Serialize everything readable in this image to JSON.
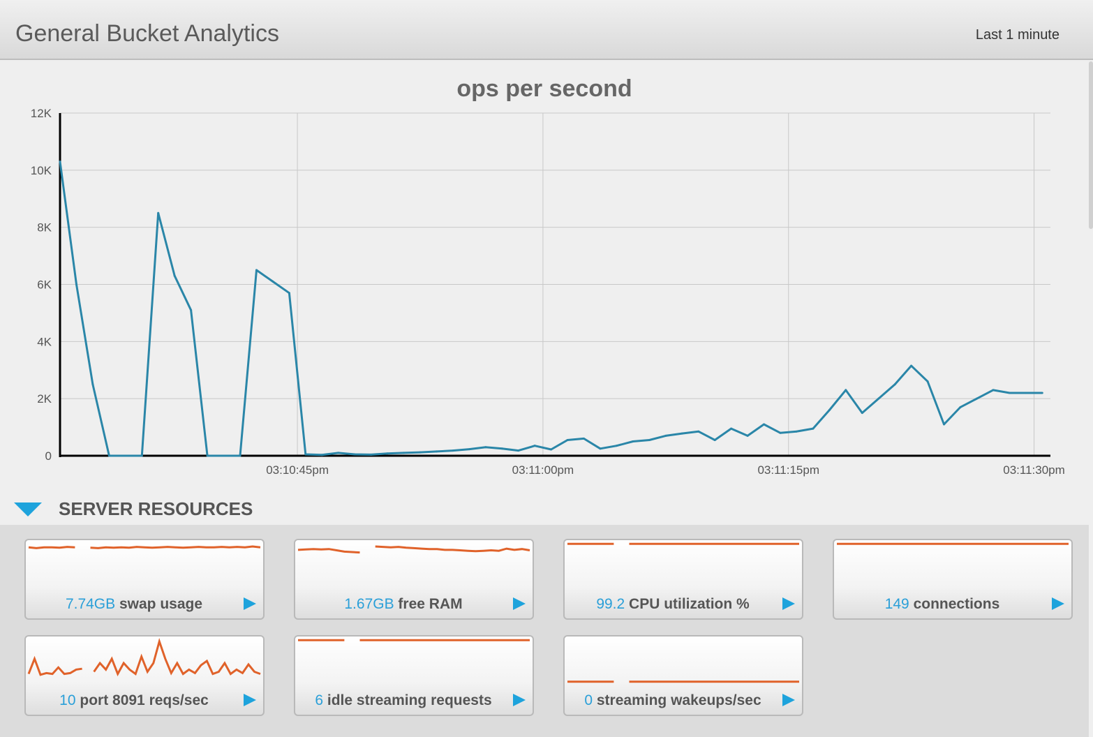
{
  "header": {
    "title": "General Bucket Analytics",
    "range": "Last 1 minute"
  },
  "chart_data": {
    "type": "line",
    "title": "ops per second",
    "ylim": [
      0,
      12000
    ],
    "y_ticks": [
      0,
      2000,
      4000,
      6000,
      8000,
      10000,
      12000
    ],
    "y_tick_labels": [
      "0",
      "2K",
      "4K",
      "6K",
      "8K",
      "10K",
      "12K"
    ],
    "x_range": [
      0,
      60.5
    ],
    "x_tick_positions": [
      14.5,
      29.5,
      44.5,
      59.5
    ],
    "x_tick_labels": [
      "03:10:45pm",
      "03:11:00pm",
      "03:11:15pm",
      "03:11:30pm"
    ],
    "grid": true,
    "x": [
      0,
      1,
      2,
      3,
      4,
      5,
      6,
      7,
      8,
      9,
      10,
      11,
      12,
      13,
      14,
      15,
      16,
      17,
      18,
      19,
      20,
      21,
      22,
      23,
      24,
      25,
      26,
      27,
      28,
      29,
      30,
      31,
      32,
      33,
      34,
      35,
      36,
      37,
      38,
      39,
      40,
      41,
      42,
      43,
      44,
      45,
      46,
      47,
      48,
      49,
      50,
      51,
      52,
      53,
      54,
      55,
      56,
      57,
      58,
      59,
      60
    ],
    "series": [
      {
        "values": [
          10300,
          6000,
          2500,
          0,
          0,
          0,
          8500,
          6300,
          5100,
          0,
          0,
          0,
          6500,
          6100,
          5700,
          50,
          30,
          100,
          50,
          40,
          80,
          100,
          120,
          150,
          180,
          230,
          300,
          250,
          180,
          350,
          220,
          550,
          600,
          250,
          350,
          500,
          550,
          700,
          780,
          850,
          550,
          950,
          700,
          1100,
          800,
          850,
          950,
          1600,
          2300,
          1500,
          2000,
          2500,
          3150,
          2600,
          1100,
          1700,
          2000,
          2300,
          2200,
          2200,
          2200
        ]
      }
    ]
  },
  "section": {
    "label": "SERVER RESOURCES"
  },
  "stats": [
    {
      "value": "7.74GB",
      "label": "swap usage",
      "spark": [
        0.9,
        0.88,
        0.9,
        0.9,
        0.89,
        0.91,
        0.9,
        null,
        0.89,
        0.88,
        0.9,
        0.89,
        0.9,
        0.89,
        0.91,
        0.9,
        0.89,
        0.9,
        0.91,
        0.9,
        0.89,
        0.9,
        0.91,
        0.9,
        0.9,
        0.91,
        0.9,
        0.91,
        0.9,
        0.92,
        0.9
      ]
    },
    {
      "value": "1.67GB",
      "label": "free RAM",
      "spark": [
        0.84,
        0.85,
        0.86,
        0.85,
        0.86,
        0.83,
        0.8,
        0.79,
        0.78,
        null,
        0.92,
        0.91,
        0.9,
        0.91,
        0.89,
        0.88,
        0.87,
        0.86,
        0.86,
        0.84,
        0.84,
        0.83,
        0.82,
        0.81,
        0.82,
        0.83,
        0.82,
        0.87,
        0.84,
        0.86,
        0.83
      ]
    },
    {
      "value": "99.2",
      "label": "CPU utilization %",
      "spark": [
        0.98,
        0.98,
        0.98,
        0.98,
        0.98,
        0.98,
        0.98,
        null,
        0.98,
        0.98,
        0.98,
        0.98,
        0.98,
        0.98,
        0.98,
        0.98,
        0.98,
        0.98,
        0.98,
        0.98,
        0.98,
        0.98,
        0.98,
        0.98,
        0.98,
        0.98,
        0.98,
        0.98,
        0.98,
        0.98,
        0.98
      ]
    },
    {
      "value": "149",
      "label": "connections",
      "spark": [
        0.98,
        0.98,
        0.98,
        0.98,
        0.98,
        0.98,
        0.98,
        0.98,
        0.98,
        0.98,
        0.98,
        0.98,
        0.98,
        0.98,
        0.98,
        0.98,
        0.98,
        0.98,
        0.98,
        0.98,
        0.98,
        0.98,
        0.98,
        0.98,
        0.98,
        0.98,
        0.98,
        0.98,
        0.98,
        0.98,
        0.98
      ]
    },
    {
      "value": "10",
      "label": "port 8091 reqs/sec",
      "spark": [
        0.2,
        0.55,
        0.18,
        0.22,
        0.2,
        0.35,
        0.2,
        0.22,
        0.3,
        0.32,
        null,
        0.25,
        0.45,
        0.3,
        0.55,
        0.2,
        0.45,
        0.3,
        0.2,
        0.6,
        0.25,
        0.45,
        0.95,
        0.55,
        0.22,
        0.45,
        0.2,
        0.3,
        0.22,
        0.4,
        0.5,
        0.2,
        0.25,
        0.45,
        0.2,
        0.3,
        0.22,
        0.42,
        0.25,
        0.2
      ]
    },
    {
      "value": "6",
      "label": "idle streaming requests",
      "spark": [
        0.98,
        0.98,
        0.98,
        0.98,
        0.98,
        0.98,
        0.98,
        null,
        0.98,
        0.98,
        0.98,
        0.98,
        0.98,
        0.98,
        0.98,
        0.98,
        0.98,
        0.98,
        0.98,
        0.98,
        0.98,
        0.98,
        0.98,
        0.98,
        0.98,
        0.98,
        0.98,
        0.98,
        0.98,
        0.98,
        0.98
      ]
    },
    {
      "value": "0",
      "label": "streaming wakeups/sec",
      "spark": [
        0.02,
        0.02,
        0.02,
        0.02,
        0.02,
        0.02,
        0.02,
        null,
        0.02,
        0.02,
        0.02,
        0.02,
        0.02,
        0.02,
        0.02,
        0.02,
        0.02,
        0.02,
        0.02,
        0.02,
        0.02,
        0.02,
        0.02,
        0.02,
        0.02,
        0.02,
        0.02,
        0.02,
        0.02,
        0.02,
        0.02
      ]
    }
  ],
  "colors": {
    "line": "#2a86a8",
    "spark": "#e0622a",
    "accent": "#1ea3dc",
    "value": "#2a9fd8"
  },
  "icons": {
    "section_toggle": "triangle-down-icon",
    "stat_arrow": "triangle-right-icon"
  }
}
